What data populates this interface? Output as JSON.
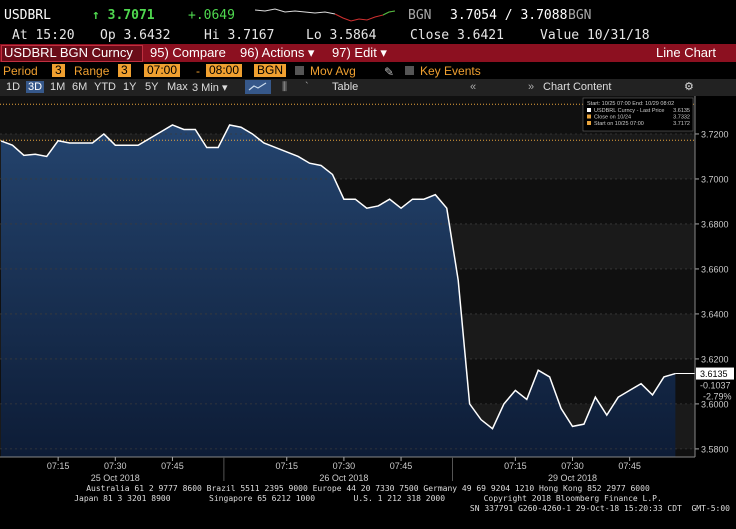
{
  "header": {
    "ticker": "USDBRL",
    "last": "↑ 3.7071",
    "change": "+.0649",
    "source": "BGN",
    "bid_ask": "3.7054 / 3.7088",
    "source2": "BGN"
  },
  "quote": {
    "at": "At 15:20",
    "open": "Op 3.6432",
    "high": "Hi 3.7167",
    "low": "Lo 3.5864",
    "close": "Close 3.6421",
    "value": "Value 10/31/18"
  },
  "toolbar": {
    "security": "USDBRL BGN Curncy",
    "compare": "95) Compare",
    "actions": "96) Actions ▾",
    "edit": "97) Edit ▾",
    "chart_type": "Line Chart"
  },
  "settings": {
    "period_label": "Period",
    "period": "3",
    "range_label": "Range",
    "range": "3",
    "start": "07:00",
    "dash": "-",
    "end": "08:00",
    "source": "BGN",
    "mov_avg": "Mov Avg",
    "key_events": "Key Events"
  },
  "ranges": [
    "1D",
    "3D",
    "1M",
    "6M",
    "YTD",
    "1Y",
    "5Y",
    "Max"
  ],
  "interval": "3 Min ▾",
  "table": "Table",
  "chart_content": "Chart Content",
  "chart_data": {
    "type": "line",
    "color": "#ffffff",
    "categories": [
      null,
      null,
      null,
      null,
      null,
      "07:15",
      null,
      null,
      null,
      null,
      "07:30",
      null,
      null,
      null,
      null,
      "07:45",
      null,
      null,
      null,
      null,
      null,
      null,
      null,
      null,
      null,
      "07:15",
      null,
      null,
      null,
      null,
      "07:30",
      null,
      null,
      null,
      null,
      "07:45",
      null,
      null,
      null,
      null,
      null,
      null,
      null,
      null,
      null,
      "07:15",
      null,
      null,
      null,
      null,
      "07:30",
      null,
      null,
      null,
      null,
      "07:45",
      null,
      null,
      null,
      null
    ],
    "dates": [
      "25 Oct 2018",
      "26 Oct 2018",
      "29 Oct 2018"
    ],
    "values": [
      3.7169,
      3.715,
      3.7105,
      3.711,
      3.71,
      3.717,
      3.716,
      3.716,
      3.716,
      3.72,
      3.715,
      3.715,
      3.715,
      3.718,
      3.721,
      3.724,
      3.722,
      3.722,
      3.714,
      3.714,
      3.724,
      3.723,
      3.72,
      3.716,
      3.714,
      3.712,
      3.71,
      3.707,
      3.706,
      3.702,
      3.691,
      3.691,
      3.687,
      3.688,
      3.691,
      3.687,
      3.691,
      3.691,
      3.693,
      3.687,
      3.655,
      3.6,
      3.593,
      3.589,
      3.6,
      3.606,
      3.602,
      3.615,
      3.612,
      3.598,
      3.59,
      3.591,
      3.603,
      3.595,
      3.603,
      3.606,
      3.609,
      3.604,
      3.612,
      3.6135
    ],
    "ylim": [
      3.5764,
      3.7351
    ],
    "yticks": [
      {
        "value": 3.58,
        "label": "3.5800"
      },
      {
        "value": 3.6,
        "label": "3.6000"
      },
      {
        "value": 3.62,
        "label": "3.6200"
      },
      {
        "value": 3.64,
        "label": "3.6400"
      },
      {
        "value": 3.66,
        "label": "3.6600"
      },
      {
        "value": 3.68,
        "label": "3.6800"
      },
      {
        "value": 3.7,
        "label": "3.7000"
      },
      {
        "value": 3.72,
        "label": "3.7200"
      }
    ],
    "grid": true,
    "last_tag": {
      "change": "-0.1037",
      "pct": "-2.79%"
    },
    "legend": {
      "range": "Start: 10/25 07:00 End: 10/29 08:02",
      "entries": [
        {
          "name": "USDBRL Curncy - Last Price",
          "value": 3.6135,
          "color": "#ffffff"
        },
        {
          "name": "Close on 10/24",
          "value": 3.7332,
          "color": "#e8a33c"
        },
        {
          "name": "Start on 10/25 07:00",
          "value": 3.7172,
          "color": "#e8a33c"
        }
      ]
    }
  },
  "footer": [
    "Australia 61 2 9777 8600 Brazil 5511 2395 9000 Europe 44 20 7330 7500 Germany 49 69 9204 1210 Hong Kong 852 2977 6000",
    "Japan 81 3 3201 8900        Singapore 65 6212 1000        U.S. 1 212 318 2000        Copyright 2018 Bloomberg Finance L.P.",
    "SN 337791 G260-4260-1 29-Oct-18 15:20:33 CDT  GMT-5:00"
  ]
}
